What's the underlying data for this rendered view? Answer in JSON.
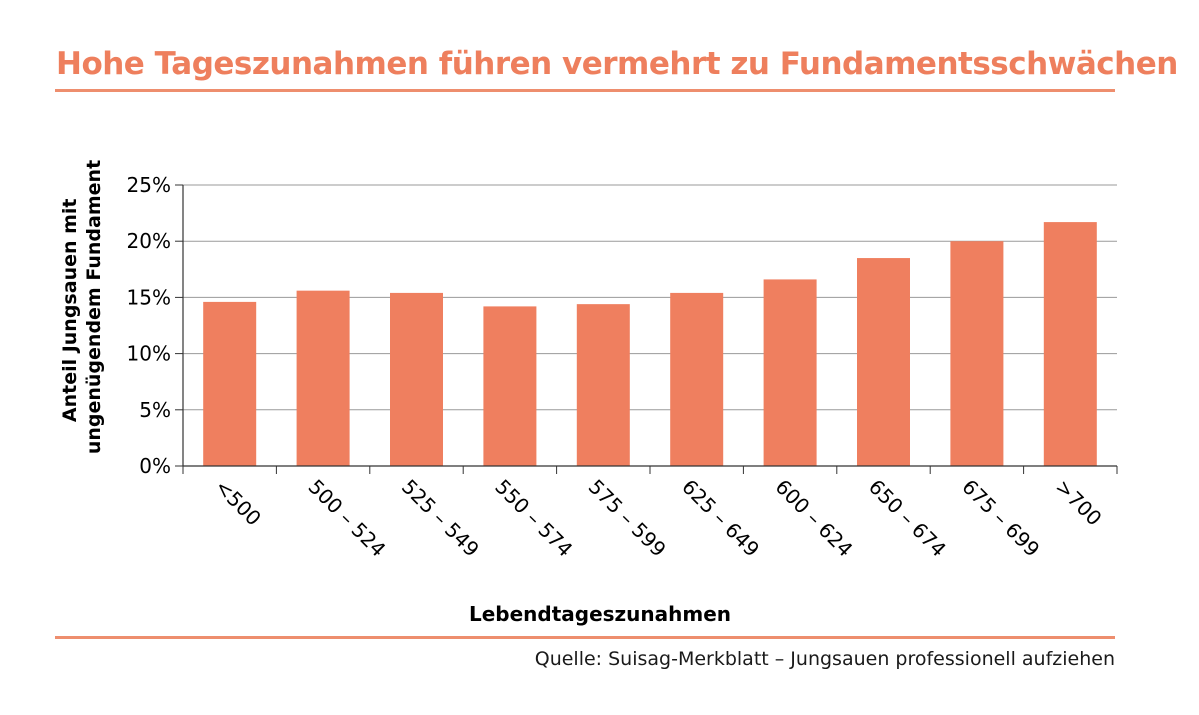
{
  "source": "Quelle: Suisag-Merkblatt – Jungsauen professionell aufziehen",
  "colors": {
    "title": "#ee7f5d",
    "bar": "#ef7f5f",
    "rule": "#ee8e6e",
    "grid": "#9a9a9a"
  },
  "chart_data": {
    "type": "bar",
    "title": "Hohe Tageszunahmen führen vermehrt zu Fundamentsschwächen",
    "xlabel": "Lebendtageszunahmen",
    "ylabel_lines": [
      "Anteil Jungsauen mit",
      "ungenügendem Fundament"
    ],
    "categories": [
      "<500",
      "500 – 524",
      "525 – 549",
      "550 – 574",
      "575 – 599",
      "625 – 649",
      "600 – 624",
      "650 – 674",
      "675 – 699",
      ">700"
    ],
    "values": [
      14.6,
      15.6,
      15.4,
      14.2,
      14.4,
      15.4,
      16.6,
      18.5,
      20.0,
      21.7
    ],
    "ylim": [
      0,
      25
    ],
    "yticks": [
      0,
      5,
      10,
      15,
      20,
      25
    ],
    "ytick_labels": [
      "0%",
      "5%",
      "10%",
      "15%",
      "20%",
      "25%"
    ],
    "grid": true,
    "legend": "none"
  }
}
